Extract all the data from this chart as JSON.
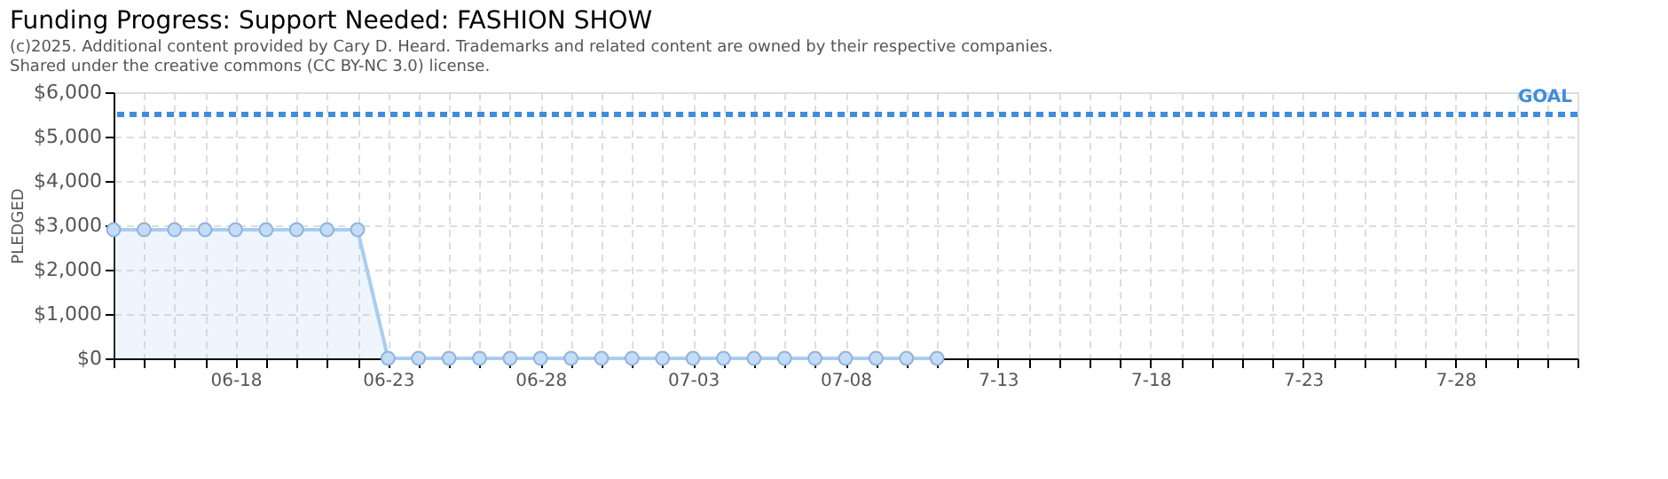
{
  "chart_data": {
    "type": "area",
    "title": "Funding Progress: Support Needed: FASHION SHOW",
    "ylabel": "PLEDGED",
    "categories": [
      null,
      null,
      null,
      null,
      "06-18",
      null,
      null,
      null,
      null,
      "06-23",
      null,
      null,
      null,
      null,
      "06-28",
      null,
      null,
      null,
      null,
      "07-03",
      null,
      null,
      null,
      null,
      "07-08",
      null,
      null,
      null,
      null,
      "7-13",
      null,
      null,
      null,
      null,
      "7-18",
      null,
      null,
      null,
      null,
      "7-23",
      null,
      null,
      null,
      null,
      "7-28",
      null,
      null,
      null,
      null
    ],
    "series": [
      {
        "color": "#a8cdf0",
        "values": [
          2900,
          2900,
          2900,
          2900,
          2900,
          2900,
          2900,
          2900,
          2900,
          0,
          0,
          0,
          0,
          0,
          0,
          0,
          0,
          0,
          0,
          0,
          0,
          0,
          0,
          0,
          0,
          0,
          0,
          0,
          null,
          null,
          null,
          null,
          null,
          null,
          null,
          null,
          null,
          null,
          null,
          null,
          null,
          null,
          null,
          null,
          null,
          null,
          null,
          null,
          null
        ]
      }
    ],
    "ylim": [
      0,
      6000
    ],
    "yticks": [
      {
        "value": 0,
        "label": "$0"
      },
      {
        "value": 1000,
        "label": "$1,000"
      },
      {
        "value": 2000,
        "label": "$2,000"
      },
      {
        "value": 3000,
        "label": "$3,000"
      },
      {
        "value": 4000,
        "label": "$4,000"
      },
      {
        "value": 5000,
        "label": "$5,000"
      },
      {
        "value": 6000,
        "label": "$6,000"
      }
    ],
    "ref_lines": [
      {
        "axis": "y",
        "value": 5500,
        "label": "GOAL",
        "color": "#3f8ddb",
        "line_style": "dashed"
      }
    ],
    "grid": true,
    "marker": "circle",
    "annotations": [
      "(c)2025. Additional content provided by Cary D. Heard. Trademarks and related content are owned by their respective companies.",
      "Shared under the creative commons (CC BY-NC 3.0) license."
    ]
  }
}
